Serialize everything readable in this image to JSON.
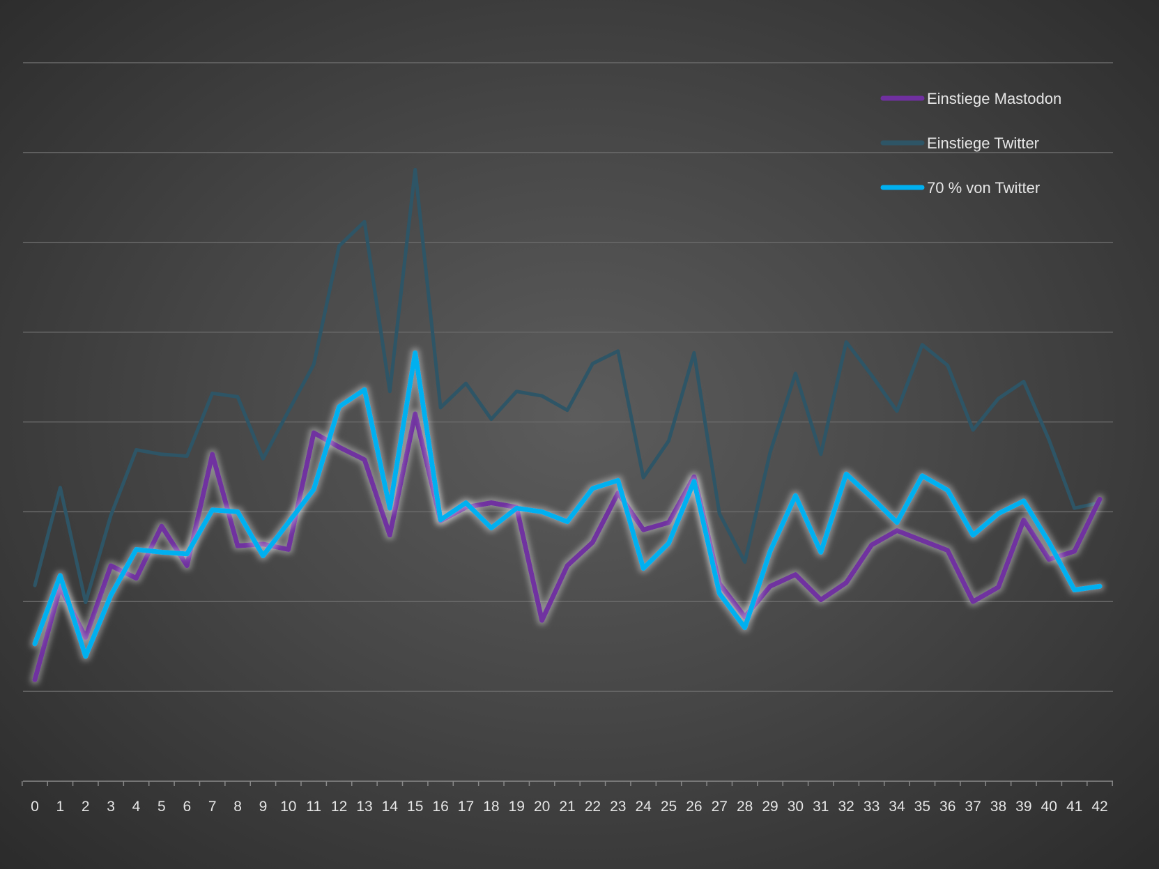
{
  "chart_data": {
    "type": "line",
    "title": "",
    "xlabel": "",
    "ylabel": "",
    "y_tick_labels_visible": false,
    "grid": true,
    "ylim": [
      0,
      8
    ],
    "legend_position": "top-right",
    "x": [
      0,
      1,
      2,
      3,
      4,
      5,
      6,
      7,
      8,
      9,
      10,
      11,
      12,
      13,
      14,
      15,
      16,
      17,
      18,
      19,
      20,
      21,
      22,
      23,
      24,
      25,
      26,
      27,
      28,
      29,
      30,
      31,
      32,
      33,
      34,
      35,
      36,
      37,
      38,
      39,
      40,
      41,
      42
    ],
    "series": [
      {
        "name": "Einstiege Mastodon",
        "color": "#7030a0",
        "glow": true,
        "values": [
          1.13,
          2.16,
          1.6,
          2.4,
          2.26,
          2.84,
          2.4,
          3.64,
          2.62,
          2.64,
          2.58,
          3.88,
          3.72,
          3.58,
          2.74,
          4.09,
          2.9,
          3.05,
          3.1,
          3.05,
          1.79,
          2.4,
          2.66,
          3.21,
          2.8,
          2.88,
          3.39,
          2.2,
          1.83,
          2.17,
          2.3,
          2.02,
          2.21,
          2.63,
          2.79,
          2.68,
          2.57,
          2.0,
          2.16,
          2.91,
          2.47,
          2.56,
          3.14
        ]
      },
      {
        "name": "Einstiege Twitter",
        "color": "#2e5566",
        "glow": false,
        "values": [
          2.18,
          3.27,
          1.99,
          2.96,
          3.69,
          3.64,
          3.62,
          4.32,
          4.28,
          3.59,
          4.12,
          4.64,
          5.96,
          6.23,
          4.34,
          6.81,
          4.16,
          4.43,
          4.03,
          4.34,
          4.29,
          4.13,
          4.65,
          4.79,
          3.38,
          3.79,
          4.77,
          2.98,
          2.44,
          3.66,
          4.54,
          3.64,
          4.89,
          4.52,
          4.12,
          4.86,
          4.63,
          3.91,
          4.26,
          4.45,
          3.8,
          3.04,
          3.1
        ]
      },
      {
        "name": "70 % von Twitter",
        "color": "#00b0f0",
        "glow": true,
        "values": [
          1.53,
          2.29,
          1.39,
          2.07,
          2.58,
          2.55,
          2.53,
          3.02,
          3.0,
          2.51,
          2.88,
          3.25,
          4.17,
          4.36,
          3.04,
          4.77,
          2.91,
          3.1,
          2.82,
          3.04,
          3.0,
          2.89,
          3.26,
          3.35,
          2.37,
          2.65,
          3.34,
          2.09,
          1.71,
          2.56,
          3.18,
          2.55,
          3.42,
          3.16,
          2.88,
          3.4,
          3.24,
          2.74,
          2.98,
          3.12,
          2.66,
          2.13,
          2.17
        ]
      }
    ]
  }
}
